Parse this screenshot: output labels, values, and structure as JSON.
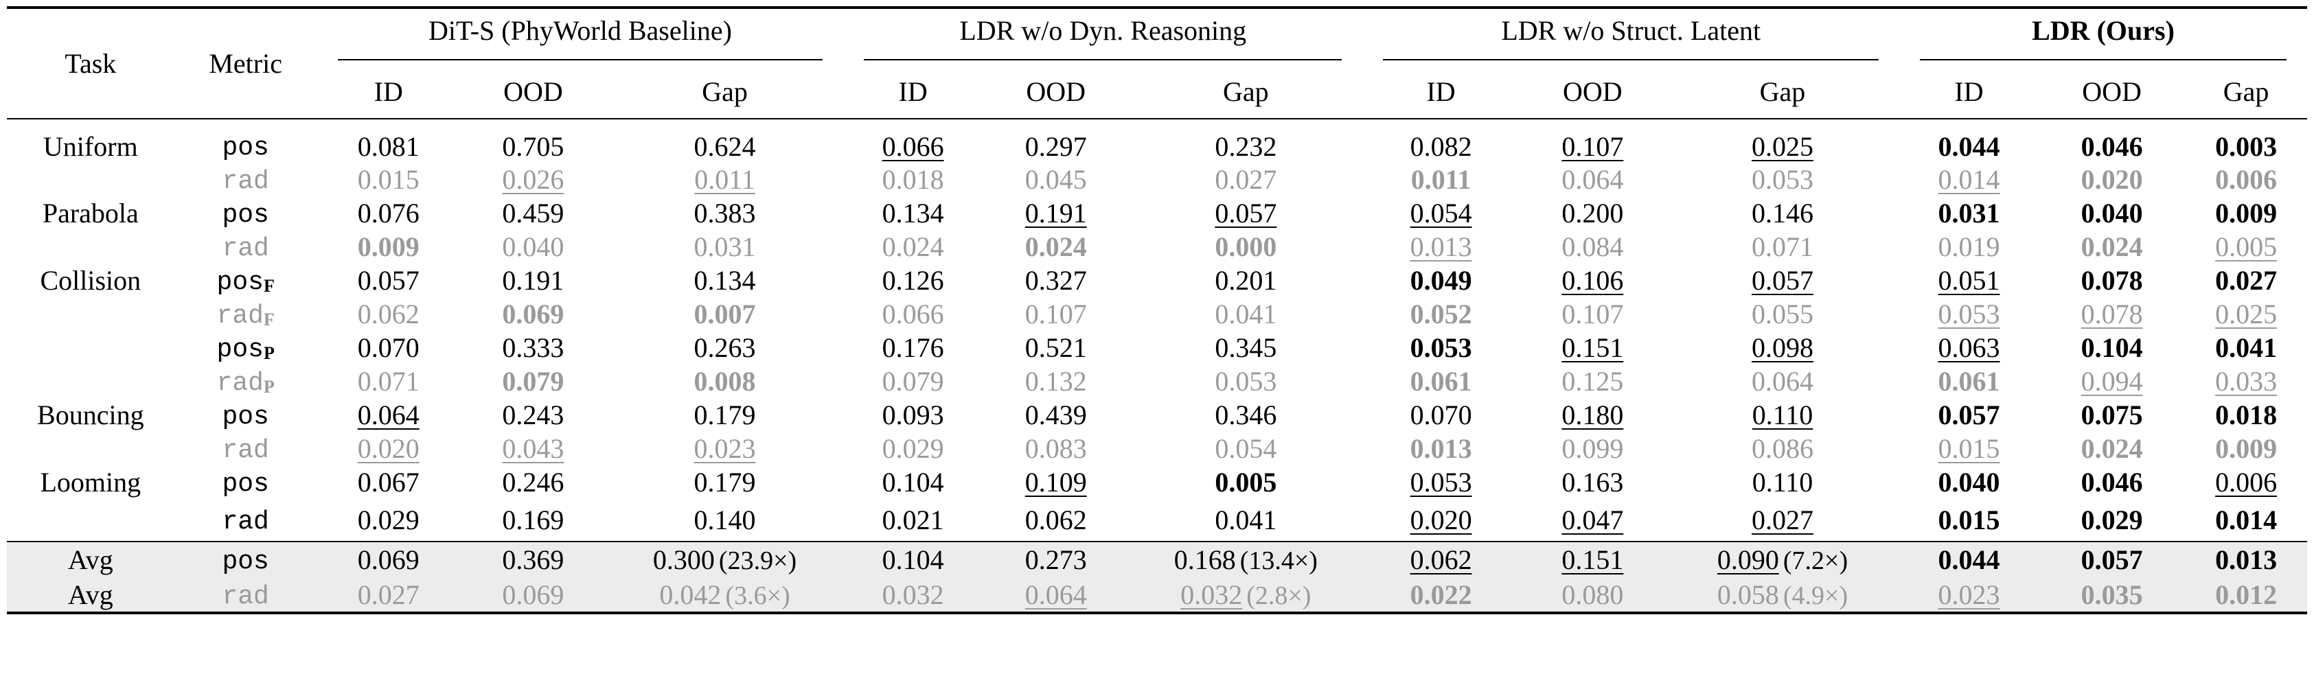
{
  "header": {
    "task": "Task",
    "metric": "Metric",
    "groups": [
      "DiT-S (PhyWorld Baseline)",
      "LDR w/o Dyn. Reasoning",
      "LDR w/o Struct. Latent",
      "LDR (Ours)"
    ],
    "sub": [
      "ID",
      "OOD",
      "Gap"
    ]
  },
  "rows": [
    {
      "task": "Uniform",
      "metric": "pos",
      "sub": "",
      "grey": false,
      "c": [
        [
          "0.081",
          ""
        ],
        [
          "0.705",
          ""
        ],
        [
          "0.624",
          ""
        ],
        [
          "0.066",
          "u"
        ],
        [
          "0.297",
          ""
        ],
        [
          "0.232",
          ""
        ],
        [
          "0.082",
          ""
        ],
        [
          "0.107",
          "u"
        ],
        [
          "0.025",
          "u"
        ],
        [
          "0.044",
          "b"
        ],
        [
          "0.046",
          "b"
        ],
        [
          "0.003",
          "b"
        ]
      ]
    },
    {
      "task": "",
      "metric": "rad",
      "sub": "",
      "grey": true,
      "c": [
        [
          "0.015",
          ""
        ],
        [
          "0.026",
          "u"
        ],
        [
          "0.011",
          "u"
        ],
        [
          "0.018",
          ""
        ],
        [
          "0.045",
          ""
        ],
        [
          "0.027",
          ""
        ],
        [
          "0.011",
          "b"
        ],
        [
          "0.064",
          ""
        ],
        [
          "0.053",
          ""
        ],
        [
          "0.014",
          "u"
        ],
        [
          "0.020",
          "b"
        ],
        [
          "0.006",
          "b"
        ]
      ]
    },
    {
      "task": "Parabola",
      "metric": "pos",
      "sub": "",
      "grey": false,
      "c": [
        [
          "0.076",
          ""
        ],
        [
          "0.459",
          ""
        ],
        [
          "0.383",
          ""
        ],
        [
          "0.134",
          ""
        ],
        [
          "0.191",
          "u"
        ],
        [
          "0.057",
          "u"
        ],
        [
          "0.054",
          "u"
        ],
        [
          "0.200",
          ""
        ],
        [
          "0.146",
          ""
        ],
        [
          "0.031",
          "b"
        ],
        [
          "0.040",
          "b"
        ],
        [
          "0.009",
          "b"
        ]
      ]
    },
    {
      "task": "",
      "metric": "rad",
      "sub": "",
      "grey": true,
      "c": [
        [
          "0.009",
          "b"
        ],
        [
          "0.040",
          ""
        ],
        [
          "0.031",
          ""
        ],
        [
          "0.024",
          ""
        ],
        [
          "0.024",
          "b"
        ],
        [
          "0.000",
          "b"
        ],
        [
          "0.013",
          "u"
        ],
        [
          "0.084",
          ""
        ],
        [
          "0.071",
          ""
        ],
        [
          "0.019",
          ""
        ],
        [
          "0.024",
          "b"
        ],
        [
          "0.005",
          "u"
        ]
      ]
    },
    {
      "task": "Collision",
      "metric": "pos",
      "sub": "F",
      "grey": false,
      "c": [
        [
          "0.057",
          ""
        ],
        [
          "0.191",
          ""
        ],
        [
          "0.134",
          ""
        ],
        [
          "0.126",
          ""
        ],
        [
          "0.327",
          ""
        ],
        [
          "0.201",
          ""
        ],
        [
          "0.049",
          "b"
        ],
        [
          "0.106",
          "u"
        ],
        [
          "0.057",
          "u"
        ],
        [
          "0.051",
          "u"
        ],
        [
          "0.078",
          "b"
        ],
        [
          "0.027",
          "b"
        ]
      ]
    },
    {
      "task": "",
      "metric": "rad",
      "sub": "F",
      "grey": true,
      "c": [
        [
          "0.062",
          ""
        ],
        [
          "0.069",
          "b"
        ],
        [
          "0.007",
          "b"
        ],
        [
          "0.066",
          ""
        ],
        [
          "0.107",
          ""
        ],
        [
          "0.041",
          ""
        ],
        [
          "0.052",
          "b"
        ],
        [
          "0.107",
          ""
        ],
        [
          "0.055",
          ""
        ],
        [
          "0.053",
          "u"
        ],
        [
          "0.078",
          "u"
        ],
        [
          "0.025",
          "u"
        ]
      ]
    },
    {
      "task": "",
      "metric": "pos",
      "sub": "P",
      "grey": false,
      "c": [
        [
          "0.070",
          ""
        ],
        [
          "0.333",
          ""
        ],
        [
          "0.263",
          ""
        ],
        [
          "0.176",
          ""
        ],
        [
          "0.521",
          ""
        ],
        [
          "0.345",
          ""
        ],
        [
          "0.053",
          "b"
        ],
        [
          "0.151",
          "u"
        ],
        [
          "0.098",
          "u"
        ],
        [
          "0.063",
          "u"
        ],
        [
          "0.104",
          "b"
        ],
        [
          "0.041",
          "b"
        ]
      ]
    },
    {
      "task": "",
      "metric": "rad",
      "sub": "P",
      "grey": true,
      "c": [
        [
          "0.071",
          ""
        ],
        [
          "0.079",
          "b"
        ],
        [
          "0.008",
          "b"
        ],
        [
          "0.079",
          ""
        ],
        [
          "0.132",
          ""
        ],
        [
          "0.053",
          ""
        ],
        [
          "0.061",
          "b"
        ],
        [
          "0.125",
          ""
        ],
        [
          "0.064",
          ""
        ],
        [
          "0.061",
          "b"
        ],
        [
          "0.094",
          "u"
        ],
        [
          "0.033",
          "u"
        ]
      ]
    },
    {
      "task": "Bouncing",
      "metric": "pos",
      "sub": "",
      "grey": false,
      "c": [
        [
          "0.064",
          "u"
        ],
        [
          "0.243",
          ""
        ],
        [
          "0.179",
          ""
        ],
        [
          "0.093",
          ""
        ],
        [
          "0.439",
          ""
        ],
        [
          "0.346",
          ""
        ],
        [
          "0.070",
          ""
        ],
        [
          "0.180",
          "u"
        ],
        [
          "0.110",
          "u"
        ],
        [
          "0.057",
          "b"
        ],
        [
          "0.075",
          "b"
        ],
        [
          "0.018",
          "b"
        ]
      ]
    },
    {
      "task": "",
      "metric": "rad",
      "sub": "",
      "grey": true,
      "c": [
        [
          "0.020",
          "u"
        ],
        [
          "0.043",
          "u"
        ],
        [
          "0.023",
          "u"
        ],
        [
          "0.029",
          ""
        ],
        [
          "0.083",
          ""
        ],
        [
          "0.054",
          ""
        ],
        [
          "0.013",
          "b"
        ],
        [
          "0.099",
          ""
        ],
        [
          "0.086",
          ""
        ],
        [
          "0.015",
          "u"
        ],
        [
          "0.024",
          "b"
        ],
        [
          "0.009",
          "b"
        ]
      ]
    },
    {
      "task": "Looming",
      "metric": "pos",
      "sub": "",
      "grey": false,
      "c": [
        [
          "0.067",
          ""
        ],
        [
          "0.246",
          ""
        ],
        [
          "0.179",
          ""
        ],
        [
          "0.104",
          ""
        ],
        [
          "0.109",
          "u"
        ],
        [
          "0.005",
          "b"
        ],
        [
          "0.053",
          "u"
        ],
        [
          "0.163",
          ""
        ],
        [
          "0.110",
          ""
        ],
        [
          "0.040",
          "b"
        ],
        [
          "0.046",
          "b"
        ],
        [
          "0.006",
          "u"
        ]
      ]
    },
    {
      "task": "",
      "metric": "rad",
      "sub": "",
      "grey": false,
      "c": [
        [
          "0.029",
          ""
        ],
        [
          "0.169",
          ""
        ],
        [
          "0.140",
          ""
        ],
        [
          "0.021",
          ""
        ],
        [
          "0.062",
          ""
        ],
        [
          "0.041",
          ""
        ],
        [
          "0.020",
          "u"
        ],
        [
          "0.047",
          "u"
        ],
        [
          "0.027",
          "u"
        ],
        [
          "0.015",
          "b"
        ],
        [
          "0.029",
          "b"
        ],
        [
          "0.014",
          "b"
        ]
      ]
    }
  ],
  "avg": [
    {
      "task": "Avg",
      "metric": "pos",
      "grey": false,
      "c": [
        [
          "0.069",
          ""
        ],
        [
          "0.369",
          ""
        ],
        [
          "0.300",
          ""
        ],
        [
          "0.104",
          ""
        ],
        [
          "0.273",
          ""
        ],
        [
          "0.168",
          ""
        ],
        [
          "0.062",
          "u"
        ],
        [
          "0.151",
          "u"
        ],
        [
          "0.090",
          "u"
        ],
        [
          "0.044",
          "b"
        ],
        [
          "0.057",
          "b"
        ],
        [
          "0.013",
          "b"
        ]
      ],
      "ratios": [
        "(23.9×)",
        "(13.4×)",
        "(7.2×)"
      ]
    },
    {
      "task": "Avg",
      "metric": "rad",
      "grey": true,
      "c": [
        [
          "0.027",
          ""
        ],
        [
          "0.069",
          ""
        ],
        [
          "0.042",
          ""
        ],
        [
          "0.032",
          ""
        ],
        [
          "0.064",
          "u"
        ],
        [
          "0.032",
          "u"
        ],
        [
          "0.022",
          "b"
        ],
        [
          "0.080",
          ""
        ],
        [
          "0.058",
          ""
        ],
        [
          "0.023",
          "u"
        ],
        [
          "0.035",
          "b"
        ],
        [
          "0.012",
          "b"
        ]
      ],
      "ratios": [
        "(3.6×)",
        "(2.8×)",
        "(4.9×)"
      ]
    }
  ]
}
